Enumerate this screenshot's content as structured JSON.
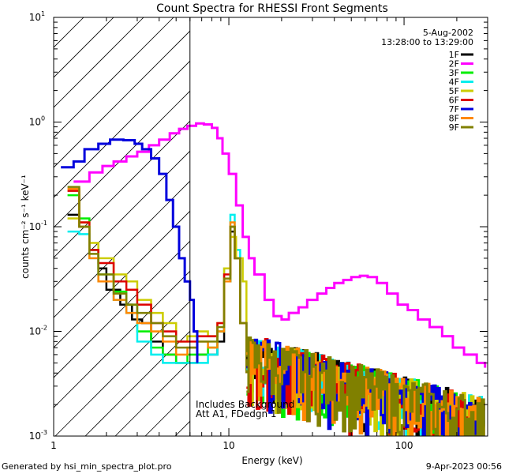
{
  "chart_data": {
    "type": "line",
    "title": "Count Spectra for RHESSI Front Segments",
    "xlabel": "Energy (keV)",
    "ylabel": "counts cm⁻² s⁻¹ keV⁻¹",
    "xscale": "log",
    "yscale": "log",
    "xlim": [
      1,
      300
    ],
    "ylim": [
      0.001,
      10
    ],
    "x_ticks": [
      {
        "value": 1,
        "label": "1"
      },
      {
        "value": 10,
        "label": "10"
      },
      {
        "value": 100,
        "label": "100"
      }
    ],
    "y_ticks": [
      {
        "value": 0.001,
        "label": "10",
        "exp": "-3"
      },
      {
        "value": 0.01,
        "label": "10",
        "exp": "-2"
      },
      {
        "value": 0.1,
        "label": "10",
        "exp": "-1"
      },
      {
        "value": 1,
        "label": "10",
        "exp": "0"
      },
      {
        "value": 10,
        "label": "10",
        "exp": "1"
      }
    ],
    "excluded_region": {
      "from": 1,
      "to": 6,
      "style": "hatched"
    },
    "header": {
      "date": "5-Aug-2002",
      "time_range": "13:28:00 to 13:29:00"
    },
    "annotation": [
      "Includes Background",
      "Att A1, FDedgn 1"
    ],
    "series": [
      {
        "name": "1F",
        "color": "#000000"
      },
      {
        "name": "2F",
        "color": "#ff00ff"
      },
      {
        "name": "3F",
        "color": "#00ee00"
      },
      {
        "name": "4F",
        "color": "#00eeee"
      },
      {
        "name": "5F",
        "color": "#cccc00"
      },
      {
        "name": "6F",
        "color": "#dd0000"
      },
      {
        "name": "7F",
        "color": "#0000dd"
      },
      {
        "name": "8F",
        "color": "#ff8800"
      },
      {
        "name": "9F",
        "color": "#808000"
      }
    ],
    "main_curves": {
      "7F": [
        [
          1.1,
          0.37
        ],
        [
          1.3,
          0.42
        ],
        [
          1.5,
          0.55
        ],
        [
          1.8,
          0.62
        ],
        [
          2.1,
          0.68
        ],
        [
          2.5,
          0.67
        ],
        [
          2.9,
          0.62
        ],
        [
          3.2,
          0.55
        ],
        [
          3.6,
          0.45
        ],
        [
          4.0,
          0.32
        ],
        [
          4.4,
          0.18
        ],
        [
          4.8,
          0.1
        ],
        [
          5.2,
          0.05
        ],
        [
          5.6,
          0.03
        ],
        [
          6.0,
          0.02
        ],
        [
          6.3,
          0.01
        ],
        [
          6.6,
          0.005
        ]
      ],
      "2F": [
        [
          1.3,
          0.27
        ],
        [
          1.6,
          0.33
        ],
        [
          1.9,
          0.38
        ],
        [
          2.2,
          0.42
        ],
        [
          2.6,
          0.47
        ],
        [
          3.0,
          0.52
        ],
        [
          3.5,
          0.6
        ],
        [
          4.0,
          0.68
        ],
        [
          4.6,
          0.78
        ],
        [
          5.2,
          0.86
        ],
        [
          5.8,
          0.92
        ],
        [
          6.5,
          0.97
        ],
        [
          7.2,
          0.95
        ],
        [
          8.0,
          0.88
        ],
        [
          8.6,
          0.7
        ],
        [
          9.2,
          0.5
        ],
        [
          10.0,
          0.32
        ],
        [
          11.0,
          0.16
        ],
        [
          12.0,
          0.08
        ],
        [
          13.0,
          0.05
        ],
        [
          14.0,
          0.035
        ],
        [
          16.0,
          0.02
        ],
        [
          18.0,
          0.014
        ],
        [
          20.0,
          0.013
        ],
        [
          22.0,
          0.015
        ],
        [
          25.0,
          0.017
        ],
        [
          28.0,
          0.02
        ],
        [
          32.0,
          0.023
        ],
        [
          36.0,
          0.026
        ],
        [
          40.0,
          0.029
        ],
        [
          45.0,
          0.031
        ],
        [
          50.0,
          0.033
        ],
        [
          56.0,
          0.034
        ],
        [
          62.0,
          0.033
        ],
        [
          70.0,
          0.029
        ],
        [
          80.0,
          0.023
        ],
        [
          92.0,
          0.018
        ],
        [
          105.0,
          0.016
        ],
        [
          120.0,
          0.013
        ],
        [
          140.0,
          0.011
        ],
        [
          165.0,
          0.009
        ],
        [
          190.0,
          0.007
        ],
        [
          220.0,
          0.006
        ],
        [
          260.0,
          0.005
        ],
        [
          290.0,
          0.0045
        ]
      ],
      "others": {
        "1F": [
          [
            1.2,
            0.13
          ],
          [
            1.4,
            0.1
          ],
          [
            1.6,
            0.06
          ],
          [
            1.8,
            0.04
          ],
          [
            2.0,
            0.025
          ],
          [
            2.4,
            0.018
          ],
          [
            2.8,
            0.013
          ],
          [
            3.2,
            0.012
          ],
          [
            3.6,
            0.008
          ],
          [
            4.2,
            0.006
          ],
          [
            5.0,
            0.005
          ],
          [
            5.8,
            0.005
          ],
          [
            6.6,
            0.006
          ],
          [
            7.6,
            0.006
          ],
          [
            8.6,
            0.008
          ],
          [
            9.4,
            0.03
          ],
          [
            10.2,
            0.09
          ],
          [
            10.8,
            0.05
          ],
          [
            11.6,
            0.012
          ],
          [
            12.6,
            0.004
          ]
        ],
        "3F": [
          [
            1.2,
            0.2
          ],
          [
            1.4,
            0.12
          ],
          [
            1.6,
            0.06
          ],
          [
            1.8,
            0.035
          ],
          [
            2.2,
            0.024
          ],
          [
            2.6,
            0.018
          ],
          [
            3.0,
            0.01
          ],
          [
            3.6,
            0.007
          ],
          [
            4.2,
            0.006
          ],
          [
            5.0,
            0.005
          ],
          [
            5.8,
            0.006
          ],
          [
            6.6,
            0.006
          ],
          [
            7.6,
            0.007
          ],
          [
            8.6,
            0.01
          ],
          [
            9.4,
            0.03
          ],
          [
            10.2,
            0.1
          ],
          [
            10.8,
            0.05
          ],
          [
            11.6,
            0.012
          ],
          [
            12.6,
            0.004
          ]
        ],
        "4F": [
          [
            1.2,
            0.09
          ],
          [
            1.4,
            0.085
          ],
          [
            1.6,
            0.05
          ],
          [
            1.8,
            0.03
          ],
          [
            2.2,
            0.02
          ],
          [
            2.6,
            0.015
          ],
          [
            3.0,
            0.008
          ],
          [
            3.6,
            0.006
          ],
          [
            4.2,
            0.005
          ],
          [
            5.0,
            0.005
          ],
          [
            5.8,
            0.005
          ],
          [
            6.6,
            0.005
          ],
          [
            7.6,
            0.006
          ],
          [
            8.6,
            0.01
          ],
          [
            9.4,
            0.04
          ],
          [
            10.2,
            0.13
          ],
          [
            10.8,
            0.06
          ],
          [
            11.6,
            0.012
          ],
          [
            12.6,
            0.004
          ]
        ],
        "5F": [
          [
            1.2,
            0.12
          ],
          [
            1.4,
            0.11
          ],
          [
            1.6,
            0.07
          ],
          [
            1.8,
            0.05
          ],
          [
            2.2,
            0.035
          ],
          [
            2.6,
            0.03
          ],
          [
            3.0,
            0.02
          ],
          [
            3.6,
            0.015
          ],
          [
            4.2,
            0.012
          ],
          [
            5.0,
            0.008
          ],
          [
            5.8,
            0.009
          ],
          [
            6.6,
            0.01
          ],
          [
            7.6,
            0.009
          ],
          [
            8.6,
            0.012
          ],
          [
            9.4,
            0.04
          ],
          [
            10.2,
            0.08
          ],
          [
            11.0,
            0.05
          ],
          [
            12.0,
            0.03
          ],
          [
            12.6,
            0.01
          ]
        ],
        "6F": [
          [
            1.2,
            0.22
          ],
          [
            1.4,
            0.11
          ],
          [
            1.6,
            0.06
          ],
          [
            1.8,
            0.045
          ],
          [
            2.2,
            0.03
          ],
          [
            2.6,
            0.025
          ],
          [
            3.0,
            0.018
          ],
          [
            3.6,
            0.012
          ],
          [
            4.2,
            0.01
          ],
          [
            5.0,
            0.008
          ],
          [
            5.8,
            0.008
          ],
          [
            6.6,
            0.009
          ],
          [
            7.6,
            0.009
          ],
          [
            8.6,
            0.012
          ],
          [
            9.4,
            0.035
          ],
          [
            10.2,
            0.1
          ],
          [
            10.8,
            0.05
          ],
          [
            11.6,
            0.012
          ],
          [
            12.6,
            0.004
          ]
        ],
        "8F": [
          [
            1.2,
            0.23
          ],
          [
            1.4,
            0.1
          ],
          [
            1.6,
            0.05
          ],
          [
            1.8,
            0.03
          ],
          [
            2.2,
            0.02
          ],
          [
            2.6,
            0.015
          ],
          [
            3.0,
            0.012
          ],
          [
            3.6,
            0.01
          ],
          [
            4.2,
            0.008
          ],
          [
            5.0,
            0.006
          ],
          [
            5.8,
            0.007
          ],
          [
            6.6,
            0.008
          ],
          [
            7.6,
            0.007
          ],
          [
            8.6,
            0.01
          ],
          [
            9.4,
            0.03
          ],
          [
            10.2,
            0.11
          ],
          [
            10.8,
            0.05
          ],
          [
            11.6,
            0.012
          ],
          [
            12.6,
            0.004
          ]
        ],
        "9F": [
          [
            1.2,
            0.24
          ],
          [
            1.4,
            0.1
          ],
          [
            1.6,
            0.055
          ],
          [
            1.8,
            0.035
          ],
          [
            2.2,
            0.023
          ],
          [
            2.6,
            0.018
          ],
          [
            3.0,
            0.015
          ],
          [
            3.6,
            0.012
          ],
          [
            4.2,
            0.009
          ],
          [
            5.0,
            0.007
          ],
          [
            5.8,
            0.007
          ],
          [
            6.6,
            0.008
          ],
          [
            7.6,
            0.008
          ],
          [
            8.6,
            0.011
          ],
          [
            9.4,
            0.032
          ],
          [
            10.2,
            0.1
          ],
          [
            10.8,
            0.05
          ],
          [
            11.6,
            0.012
          ],
          [
            12.6,
            0.004
          ]
        ]
      }
    }
  },
  "footer": {
    "left": "Generated by hsi_min_spectra_plot.pro",
    "right": "9-Apr-2023 00:56"
  }
}
